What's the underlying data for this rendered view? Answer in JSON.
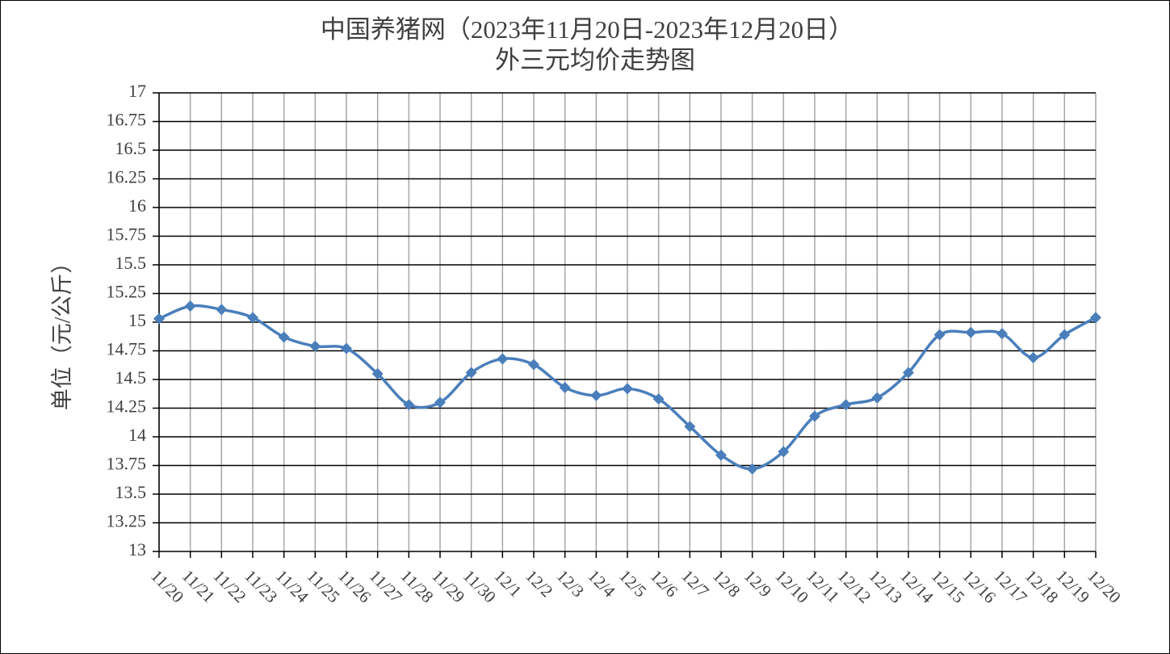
{
  "chart_data": {
    "type": "line",
    "title": "中国养猪网（2023年11月20日-2023年12月20日）",
    "subtitle": "外三元均价走势图",
    "y_label": "单位（元/公斤）",
    "categories": [
      "11/20",
      "11/21",
      "11/22",
      "11/23",
      "11/24",
      "11/25",
      "11/26",
      "11/27",
      "11/28",
      "11/29",
      "11/30",
      "12/1",
      "12/2",
      "12/3",
      "12/4",
      "12/5",
      "12/6",
      "12/7",
      "12/8",
      "12/9",
      "12/10",
      "12/11",
      "12/12",
      "12/13",
      "12/14",
      "12/15",
      "12/16",
      "12/17",
      "12/18",
      "12/19",
      "12/20"
    ],
    "series": [
      {
        "name": "外三元均价",
        "color": "#4a7ebb",
        "values": [
          15.03,
          15.14,
          15.11,
          15.04,
          14.87,
          14.79,
          14.77,
          14.55,
          14.28,
          14.3,
          14.56,
          14.68,
          14.63,
          14.43,
          14.36,
          14.42,
          14.33,
          14.09,
          13.84,
          13.72,
          13.87,
          14.18,
          14.28,
          14.34,
          14.56,
          14.89,
          14.91,
          14.9,
          14.69,
          14.89,
          15.04
        ]
      }
    ],
    "ylim": [
      13,
      17
    ],
    "yticks": [
      13,
      13.25,
      13.5,
      13.75,
      14,
      14.25,
      14.5,
      14.75,
      15,
      15.25,
      15.5,
      15.75,
      16,
      16.25,
      16.5,
      16.75,
      17
    ],
    "grid": true
  }
}
